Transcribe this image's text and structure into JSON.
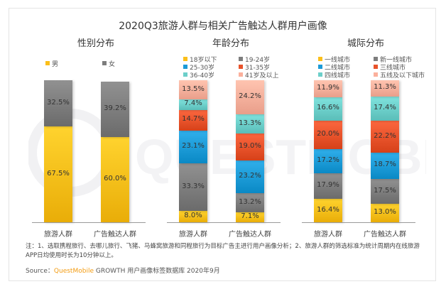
{
  "title": "2020Q3旅游人群与相关广告触达人群用户画像",
  "watermark": "QUESTMOBILE",
  "chart_data": [
    {
      "type": "bar",
      "stacked": true,
      "title": "性别分布",
      "categories": [
        "旅游人群",
        "广告触达人群"
      ],
      "series": [
        {
          "name": "男",
          "color": "#fbbf1a",
          "values": [
            67.5,
            60.0
          ]
        },
        {
          "name": "女",
          "color": "#7d7d7d",
          "values": [
            32.5,
            39.2
          ]
        }
      ],
      "value_labels": [
        [
          "67.5%",
          "60.0%"
        ],
        [
          "32.5%",
          "39.2%"
        ]
      ],
      "ylim": [
        0,
        100
      ],
      "legend": "top"
    },
    {
      "type": "bar",
      "stacked": true,
      "title": "年龄分布",
      "categories": [
        "旅游人群",
        "广告触达人群"
      ],
      "series": [
        {
          "name": "18岁以下",
          "color": "#fbbf1a",
          "values": [
            8.0,
            7.1
          ]
        },
        {
          "name": "19-24岁",
          "color": "#7d7d7d",
          "values": [
            33.3,
            13.2
          ]
        },
        {
          "name": "25-30岁",
          "color": "#1c9bd7",
          "values": [
            23.1,
            23.2
          ]
        },
        {
          "name": "31-35岁",
          "color": "#e8532b",
          "values": [
            14.7,
            19.0
          ]
        },
        {
          "name": "36-40岁",
          "color": "#6ccfca",
          "values": [
            7.4,
            13.3
          ]
        },
        {
          "name": "41岁及以上",
          "color": "#fbb09c",
          "values": [
            13.5,
            24.2
          ]
        }
      ],
      "value_labels": [
        [
          "8.0%",
          "7.1%"
        ],
        [
          "33.3%",
          "13.2%"
        ],
        [
          "23.1%",
          "23.2%"
        ],
        [
          "14.7%",
          "19.0%"
        ],
        [
          "7.4%",
          "13.3%"
        ],
        [
          "13.5%",
          "24.2%"
        ]
      ],
      "ylim": [
        0,
        100
      ],
      "legend": "top"
    },
    {
      "type": "bar",
      "stacked": true,
      "title": "城际分布",
      "categories": [
        "旅游人群",
        "广告触达人群"
      ],
      "series": [
        {
          "name": "一线城市",
          "color": "#fbbf1a",
          "values": [
            16.4,
            13.0
          ]
        },
        {
          "name": "新一线城市",
          "color": "#7d7d7d",
          "values": [
            17.9,
            17.5
          ]
        },
        {
          "name": "二线城市",
          "color": "#1c9bd7",
          "values": [
            17.2,
            18.7
          ]
        },
        {
          "name": "三线城市",
          "color": "#e8532b",
          "values": [
            20.0,
            22.2
          ]
        },
        {
          "name": "四线城市",
          "color": "#6ccfca",
          "values": [
            16.6,
            17.4
          ]
        },
        {
          "name": "五线及以下城市",
          "color": "#fbb09c",
          "values": [
            11.9,
            11.3
          ]
        }
      ],
      "value_labels": [
        [
          "16.4%",
          "13.0%"
        ],
        [
          "17.9%",
          "17.5%"
        ],
        [
          "17.2%",
          "18.7%"
        ],
        [
          "20.0%",
          "22.2%"
        ],
        [
          "16.6%",
          "17.4%"
        ],
        [
          "11.9%",
          "11.3%"
        ]
      ],
      "ylim": [
        0,
        100
      ],
      "legend": "top"
    }
  ],
  "note": "注：1、选取携程旅行、去哪儿旅行、飞猪、马蜂窝旅游和同程旅行为目标广告主进行用户画像分析；2、旅游人群的筛选标准为统计周期内在线旅游APP日均使用时长为10分钟以上。",
  "source": {
    "prefix": "Source：",
    "brand": "QuestMobile",
    "rest": " GROWTH 用户画像标签数据库 2020年9月"
  }
}
